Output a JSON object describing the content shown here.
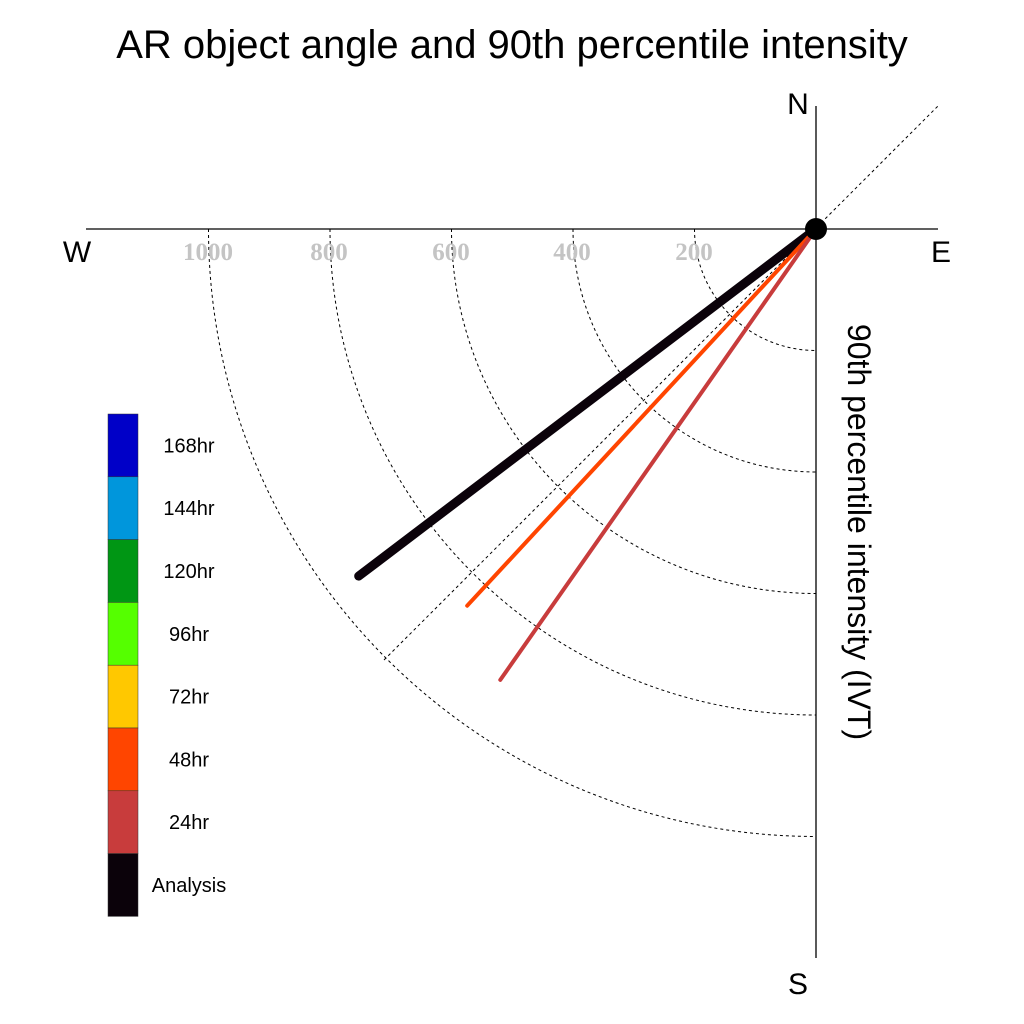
{
  "chart_data": {
    "type": "polar-vector",
    "title": "AR object angle and 90th percentile intensity",
    "ylabel": "90th percentile intensity (IVT)",
    "compass": {
      "north": "N",
      "south": "S",
      "west": "W",
      "east": "E"
    },
    "rings": [
      200,
      400,
      600,
      800,
      1000
    ],
    "ring_labels": [
      "1000",
      "800",
      "600",
      "400",
      "200"
    ],
    "grid": true,
    "legend": {
      "position": "left",
      "entries": [
        {
          "label": "168hr",
          "color": "#0000c8"
        },
        {
          "label": "144hr",
          "color": "#0096dc"
        },
        {
          "label": "120hr",
          "color": "#009614"
        },
        {
          "label": "96hr",
          "color": "#55ff00"
        },
        {
          "label": "72hr",
          "color": "#ffc800"
        },
        {
          "label": "48hr",
          "color": "#ff4500"
        },
        {
          "label": "24hr",
          "color": "#c83c3c"
        },
        {
          "label": "Analysis",
          "color": "#0b020a"
        }
      ]
    },
    "series": [
      {
        "name": "Analysis",
        "color": "#0b020a",
        "angle_deg_from_west": 37.2,
        "intensity": 945
      },
      {
        "name": "48hr",
        "color": "#ff4500",
        "angle_deg_from_west": 47.2,
        "intensity": 845
      },
      {
        "name": "24hr",
        "color": "#c83c3c",
        "angle_deg_from_west": 55.0,
        "intensity": 906
      }
    ]
  }
}
